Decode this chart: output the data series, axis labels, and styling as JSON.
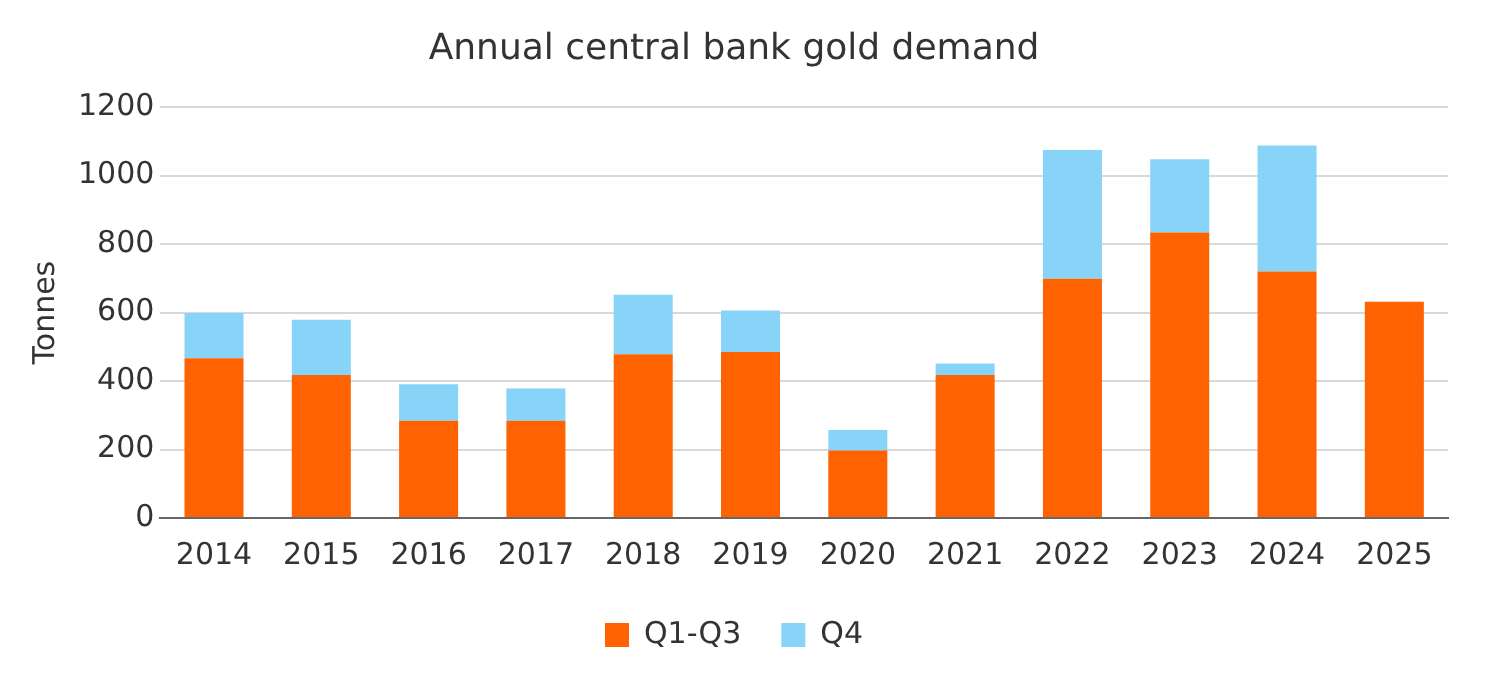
{
  "chart_data": {
    "type": "bar",
    "title": "Annual central bank gold demand",
    "ylabel": "Tonnes",
    "categories": [
      "2014",
      "2015",
      "2016",
      "2017",
      "2018",
      "2019",
      "2020",
      "2021",
      "2022",
      "2023",
      "2024",
      "2025"
    ],
    "series": [
      {
        "name": "Q1-Q3",
        "color": "#ff6200",
        "values": [
          467,
          418,
          284,
          284,
          478,
          485,
          197,
          418,
          699,
          834,
          720,
          632
        ]
      },
      {
        "name": "Q4",
        "color": "#87d4f8",
        "values": [
          132,
          161,
          107,
          94,
          174,
          121,
          60,
          33,
          376,
          214,
          368,
          null
        ]
      }
    ],
    "stacked": true,
    "ylim": [
      0,
      1200
    ],
    "yticks": [
      0,
      200,
      400,
      600,
      800,
      1000,
      1200
    ],
    "grid": "y",
    "legend": "bottom"
  }
}
